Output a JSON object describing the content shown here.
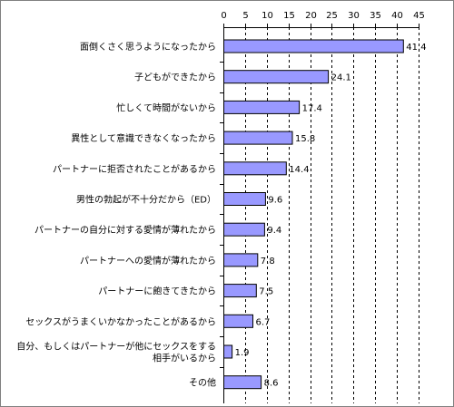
{
  "chart_data": {
    "type": "bar",
    "orientation": "horizontal",
    "title": "",
    "xlabel": "",
    "ylabel": "",
    "xlim": [
      0,
      45
    ],
    "ticks": [
      0,
      5,
      10,
      15,
      20,
      25,
      30,
      35,
      40,
      45
    ],
    "tick_labels": [
      "0",
      "5",
      "10",
      "15",
      "20",
      "25",
      "30",
      "35",
      "40",
      "45"
    ],
    "axis_position": "top",
    "grid": "vertical dashed",
    "categories": [
      [
        "面倒くさく思うようになったから"
      ],
      [
        "子どもができたから"
      ],
      [
        "忙しくて時間がないから"
      ],
      [
        "異性として意識できなくなったから"
      ],
      [
        "パートナーに拒否されたことがあるから"
      ],
      [
        "男性の勃起が不十分だから（ED）"
      ],
      [
        "パートナーの自分に対する愛情が薄れたから"
      ],
      [
        "パートナーへの愛情が薄れたから"
      ],
      [
        "パートナーに飽きてきたから"
      ],
      [
        "セックスがうまくいかなかったことがあるから"
      ],
      [
        "自分、もしくはパートナーが他にセックスをする",
        "相手がいるから"
      ],
      [
        "その他"
      ]
    ],
    "values": [
      41.4,
      24.1,
      17.4,
      15.8,
      14.4,
      9.6,
      9.4,
      7.8,
      7.5,
      6.7,
      1.9,
      8.6
    ],
    "value_labels": [
      "41.4",
      "24.1",
      "17.4",
      "15.8",
      "14.4",
      "9.6",
      "9.4",
      "7.8",
      "7.5",
      "6.7",
      "1.9",
      "8.6"
    ],
    "colors": {
      "bar_fill": "#9999ff",
      "bar_stroke": "#000000",
      "grid": "#000000",
      "axis": "#000000",
      "text": "#000000"
    }
  }
}
